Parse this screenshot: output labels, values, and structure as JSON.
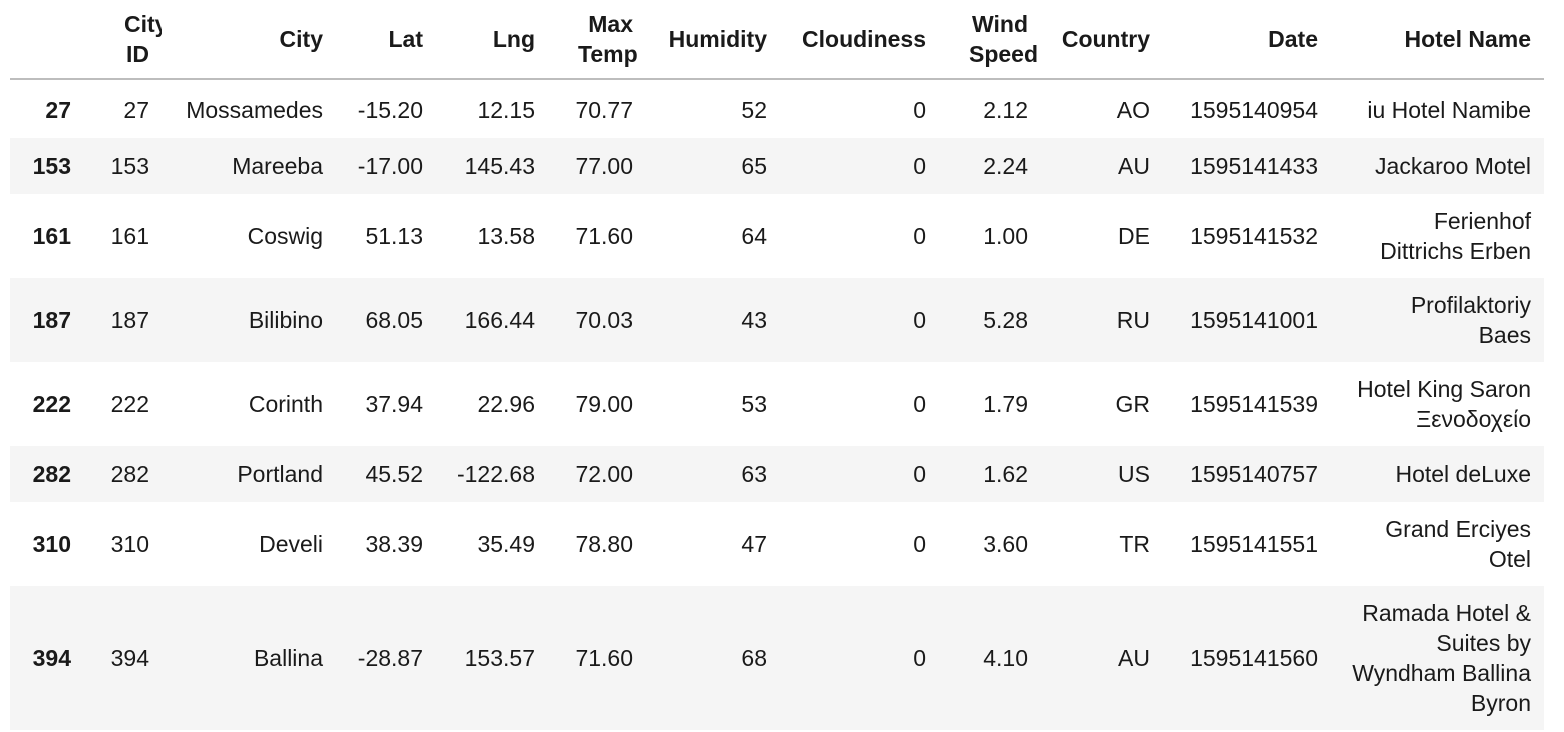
{
  "table": {
    "columns": [
      "",
      "City ID",
      "City",
      "Lat",
      "Lng",
      "Max Temp",
      "Humidity",
      "Cloudiness",
      "Wind Speed",
      "Country",
      "Date",
      "Hotel Name"
    ],
    "rows": [
      [
        "27",
        "27",
        "Mossamedes",
        "-15.20",
        "12.15",
        "70.77",
        "52",
        "0",
        "2.12",
        "AO",
        "1595140954",
        "iu Hotel Namibe"
      ],
      [
        "153",
        "153",
        "Mareeba",
        "-17.00",
        "145.43",
        "77.00",
        "65",
        "0",
        "2.24",
        "AU",
        "1595141433",
        "Jackaroo Motel"
      ],
      [
        "161",
        "161",
        "Coswig",
        "51.13",
        "13.58",
        "71.60",
        "64",
        "0",
        "1.00",
        "DE",
        "1595141532",
        "Ferienhof Dittrichs Erben"
      ],
      [
        "187",
        "187",
        "Bilibino",
        "68.05",
        "166.44",
        "70.03",
        "43",
        "0",
        "5.28",
        "RU",
        "1595141001",
        "Profilaktoriy Baes"
      ],
      [
        "222",
        "222",
        "Corinth",
        "37.94",
        "22.96",
        "79.00",
        "53",
        "0",
        "1.79",
        "GR",
        "1595141539",
        "Hotel King Saron Ξενοδοχείο"
      ],
      [
        "282",
        "282",
        "Portland",
        "45.52",
        "-122.68",
        "72.00",
        "63",
        "0",
        "1.62",
        "US",
        "1595140757",
        "Hotel deLuxe"
      ],
      [
        "310",
        "310",
        "Develi",
        "38.39",
        "35.49",
        "78.80",
        "47",
        "0",
        "3.60",
        "TR",
        "1595141551",
        "Grand Erciyes Otel"
      ],
      [
        "394",
        "394",
        "Ballina",
        "-28.87",
        "153.57",
        "71.60",
        "68",
        "0",
        "4.10",
        "AU",
        "1595141560",
        "Ramada Hotel & Suites by Wyndham Ballina Byron"
      ]
    ]
  }
}
